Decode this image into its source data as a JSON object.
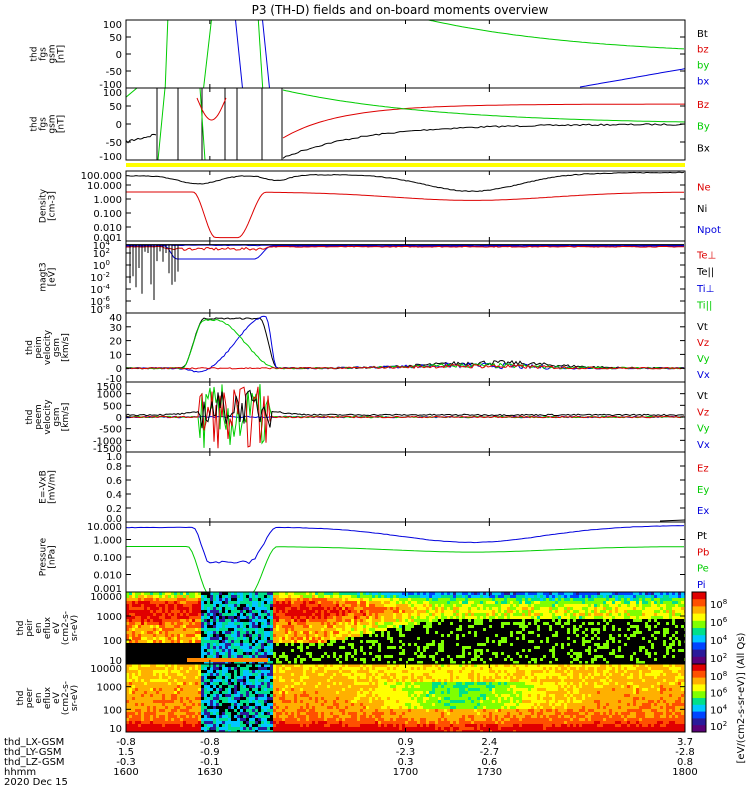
{
  "title": "P3 (TH-D) fields and on-board moments overview",
  "colors": {
    "black": "#000000",
    "red": "#dd0000",
    "green": "#00cc00",
    "blue": "#0000dd",
    "yellow": "#ffff00"
  },
  "chart_data": {
    "type": "line",
    "x_time": {
      "tick_labels": [
        "1600",
        "1630",
        "1700",
        "1730",
        "1800"
      ],
      "tick_values": [
        1600,
        1630,
        1700,
        1730,
        1800
      ],
      "date_label": "2020 Dec 15",
      "rows": [
        {
          "label": "thd_LX-GSM",
          "values": [
            "-0.8",
            "-0.8",
            "0.9",
            "2.4",
            "3.7"
          ]
        },
        {
          "label": "thd_LY-GSM",
          "values": [
            "1.5",
            "-0.9",
            "-2.3",
            "-2.7",
            "-2.8"
          ]
        },
        {
          "label": "thd_LZ-GSM",
          "values": [
            "-0.3",
            "-0.1",
            "0.3",
            "0.6",
            "0.8"
          ]
        },
        {
          "label": "hhmm",
          "values": [
            "1600",
            "1630",
            "1700",
            "1730",
            "1800"
          ]
        }
      ]
    },
    "panels": [
      {
        "id": "fgs",
        "ylabel": [
          "thd",
          "fgs",
          "gsm",
          "[nT]"
        ],
        "ylim": [
          -100,
          100
        ],
        "ticks": [
          "100",
          "50",
          "0",
          "-50",
          "-100"
        ],
        "legend": [
          {
            "name": "Bt",
            "color": "black"
          },
          {
            "name": "bz",
            "color": "red"
          },
          {
            "name": "by",
            "color": "green"
          },
          {
            "name": "bx",
            "color": "blue"
          }
        ]
      },
      {
        "id": "fgl",
        "ylabel": [
          "thd",
          "fgs",
          "gsm",
          "[nT]"
        ],
        "ylim": [
          -120,
          120
        ],
        "ticks": [
          "100",
          "50",
          "0",
          "-50",
          "-100"
        ],
        "legend": [
          {
            "name": "Bz",
            "color": "red"
          },
          {
            "name": "By",
            "color": "green"
          },
          {
            "name": "Bx",
            "color": "black"
          }
        ]
      },
      {
        "id": "density",
        "ylabel": [
          "Density",
          "[cm-3]"
        ],
        "log": true,
        "ticks": [
          "100.000",
          "10.000",
          "1.000",
          "0.100",
          "0.010",
          "0.001"
        ],
        "legend": [
          {
            "name": "Ne",
            "color": "red"
          },
          {
            "name": "Ni",
            "color": "black"
          },
          {
            "name": "Npot",
            "color": "blue"
          }
        ]
      },
      {
        "id": "temp",
        "ylabel": [
          "magt3",
          "[eV]"
        ],
        "log": true,
        "ticks": [
          "10^4",
          "10^2",
          "10^0",
          "10^-2",
          "10^-4",
          "10^-6",
          "10^-8"
        ],
        "legend": [
          {
            "name": "Te⊥",
            "color": "red"
          },
          {
            "name": "Te||",
            "color": "black"
          },
          {
            "name": "Ti⊥",
            "color": "blue"
          },
          {
            "name": "Ti||",
            "color": "green"
          }
        ]
      },
      {
        "id": "peim",
        "ylabel": [
          "thd",
          "peim",
          "velocity",
          "gsm",
          "[km/s]"
        ],
        "ylim": [
          -10,
          40
        ],
        "ticks": [
          "40",
          "30",
          "20",
          "10",
          "0",
          "-10"
        ],
        "legend": [
          {
            "name": "Vt",
            "color": "black"
          },
          {
            "name": "Vz",
            "color": "red"
          },
          {
            "name": "Vy",
            "color": "green"
          },
          {
            "name": "Vx",
            "color": "blue"
          }
        ]
      },
      {
        "id": "peem",
        "ylabel": [
          "thd",
          "peem",
          "velocity",
          "gsm",
          "[km/s]"
        ],
        "ylim": [
          -1500,
          1500
        ],
        "ticks": [
          "1500",
          "1000",
          "500",
          "0",
          "-500",
          "-1000",
          "-1500"
        ],
        "legend": [
          {
            "name": "Vt",
            "color": "black"
          },
          {
            "name": "Vz",
            "color": "red"
          },
          {
            "name": "Vy",
            "color": "green"
          },
          {
            "name": "Vx",
            "color": "blue"
          }
        ]
      },
      {
        "id": "efield",
        "ylabel": [
          "E=-VxB",
          "[mV/m]"
        ],
        "ylim": [
          0,
          1
        ],
        "ticks": [
          "1.0",
          "0.8",
          "0.6",
          "0.4",
          "0.2",
          "0.0"
        ],
        "legend": [
          {
            "name": "Ez",
            "color": "red"
          },
          {
            "name": "Ey",
            "color": "green"
          },
          {
            "name": "Ex",
            "color": "blue"
          }
        ]
      },
      {
        "id": "pressure",
        "ylabel": [
          "Pressure",
          "[nPa]"
        ],
        "log": true,
        "ticks": [
          "10.000",
          "1.000",
          "0.100",
          "0.010",
          "0.001"
        ],
        "legend": [
          {
            "name": "Pt",
            "color": "black"
          },
          {
            "name": "Pb",
            "color": "red"
          },
          {
            "name": "Pe",
            "color": "green"
          },
          {
            "name": "Pi",
            "color": "blue"
          }
        ]
      },
      {
        "id": "peir",
        "ylabel": [
          "thd",
          "peir",
          "en",
          "eflux",
          "eV",
          "(cm2-s-",
          "sr-eV)"
        ],
        "log": true,
        "ticks": [
          "10000",
          "1000",
          "100",
          "10"
        ],
        "type": "heatmap"
      },
      {
        "id": "peer",
        "ylabel": [
          "thd",
          "peer",
          "en",
          "eflux",
          "eV",
          "(cm2-s-",
          "sr-eV)"
        ],
        "log": true,
        "ticks": [
          "10000",
          "1000",
          "100",
          "10"
        ],
        "type": "heatmap"
      }
    ],
    "colorbar": {
      "label": "[eV/(cm2-s-sr-eV)] (All Qs)",
      "ticks": [
        "10^8",
        "10^6",
        "10^4",
        "10^2"
      ]
    }
  }
}
